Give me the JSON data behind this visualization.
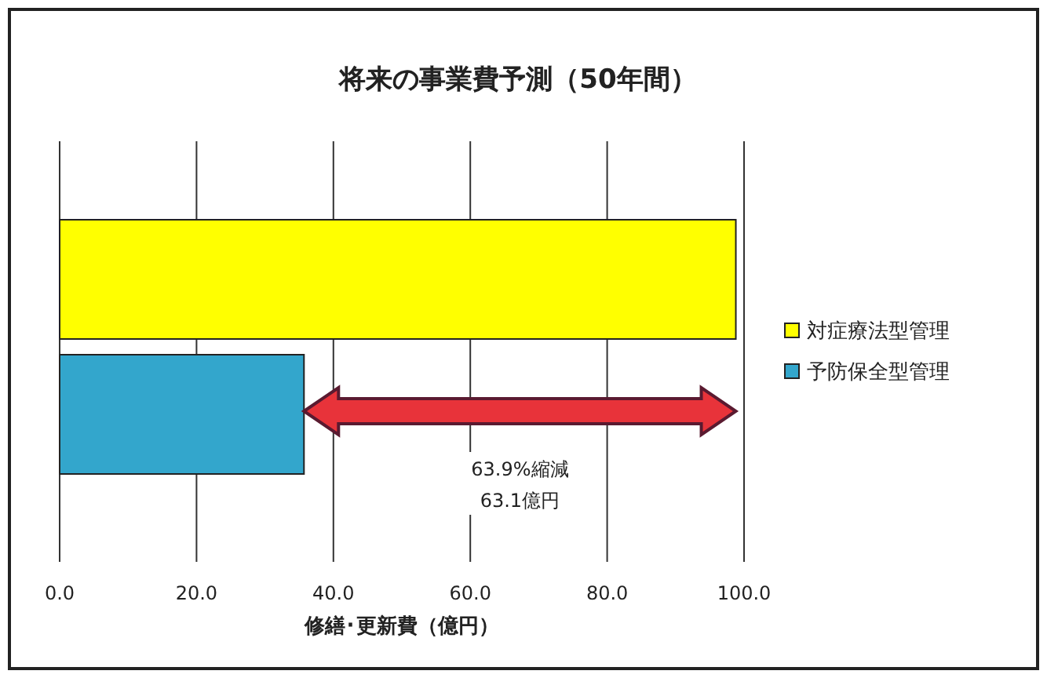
{
  "chart_data": {
    "type": "bar",
    "orientation": "horizontal",
    "stacked": true,
    "title": "将来の事業費予測（50年間）",
    "xlabel": "修繕･更新費（億円）",
    "categories": [
      null,
      null
    ],
    "series": [
      {
        "name": "対症療法型管理",
        "color": "#ffff00",
        "values": [
          98.8,
          null
        ]
      },
      {
        "name": "予防保全型管理",
        "color": "#33a6cc",
        "values": [
          null,
          35.7
        ]
      }
    ],
    "xlim": [
      0,
      100
    ],
    "xticks": [
      {
        "value": 0,
        "label": "0.0"
      },
      {
        "value": 20,
        "label": "20.0"
      },
      {
        "value": 40,
        "label": "40.0"
      },
      {
        "value": 60,
        "label": "60.0"
      },
      {
        "value": 80,
        "label": "80.0"
      },
      {
        "value": 100,
        "label": "100.0"
      }
    ],
    "grid": "x",
    "legend": "right",
    "annotations": [
      "63.9%縮減",
      "63.1億円"
    ]
  }
}
